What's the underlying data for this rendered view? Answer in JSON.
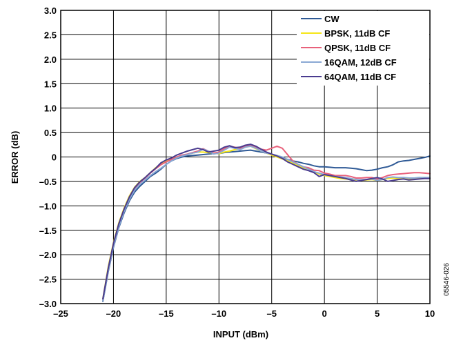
{
  "figure_id": "05546-026",
  "chart_data": {
    "type": "line",
    "xlabel": "INPUT (dBm)",
    "ylabel": "ERROR (dB)",
    "xlim": [
      -25,
      10
    ],
    "ylim": [
      -3.0,
      3.0
    ],
    "x_ticks": [
      -25,
      -20,
      -15,
      -10,
      -5,
      0,
      5,
      10
    ],
    "x_tick_labels": [
      "–25",
      "–20",
      "–15",
      "–10",
      "–5",
      "0",
      "5",
      "10"
    ],
    "y_ticks": [
      3.0,
      2.5,
      2.0,
      1.5,
      1.0,
      0.5,
      0,
      -0.5,
      -1.0,
      -1.5,
      -2.0,
      -2.5,
      -3.0
    ],
    "y_tick_labels": [
      "3.0",
      "2.5",
      "2.0",
      "1.5",
      "1.0",
      "0.5",
      "0",
      "–0.5",
      "–1.0",
      "–1.5",
      "–2.0",
      "–2.5",
      "–3.0"
    ],
    "grid": true,
    "legend_position": "top-right",
    "series": [
      {
        "name": "CW",
        "color": "#2f5a96",
        "x": [
          -21.0,
          -20.5,
          -20.0,
          -19.5,
          -19.0,
          -18.5,
          -18.0,
          -17.5,
          -17.0,
          -16.5,
          -16.0,
          -15.5,
          -15.0,
          -14.5,
          -14.0,
          -13.5,
          -13.0,
          -12.5,
          -12.0,
          -11.5,
          -11.0,
          -10.5,
          -10.0,
          -9.5,
          -9.0,
          -8.5,
          -8.0,
          -7.5,
          -7.0,
          -6.5,
          -6.0,
          -5.5,
          -5.0,
          -4.5,
          -4.0,
          -3.5,
          -3.0,
          -2.5,
          -2.0,
          -1.5,
          -1.0,
          -0.5,
          0.0,
          0.5,
          1.0,
          1.5,
          2.0,
          2.5,
          3.0,
          3.5,
          4.0,
          4.5,
          5.0,
          5.5,
          6.0,
          6.5,
          7.0,
          7.5,
          8.0,
          8.5,
          9.0,
          9.5,
          10.0
        ],
        "values": [
          -2.95,
          -2.35,
          -1.85,
          -1.45,
          -1.15,
          -0.9,
          -0.72,
          -0.6,
          -0.5,
          -0.4,
          -0.33,
          -0.25,
          -0.15,
          -0.08,
          -0.03,
          0.0,
          0.02,
          0.03,
          0.04,
          0.05,
          0.06,
          0.07,
          0.07,
          0.09,
          0.1,
          0.11,
          0.12,
          0.13,
          0.14,
          0.12,
          0.1,
          0.08,
          0.05,
          0.02,
          -0.02,
          -0.05,
          -0.08,
          -0.1,
          -0.13,
          -0.15,
          -0.18,
          -0.2,
          -0.2,
          -0.21,
          -0.22,
          -0.22,
          -0.22,
          -0.23,
          -0.24,
          -0.26,
          -0.28,
          -0.27,
          -0.25,
          -0.22,
          -0.2,
          -0.16,
          -0.1,
          -0.08,
          -0.07,
          -0.05,
          -0.03,
          -0.01,
          0.02
        ]
      },
      {
        "name": "BPSK, 11dB CF",
        "color": "#f5e617",
        "x": [
          -21.0,
          -20.5,
          -20.0,
          -19.5,
          -19.0,
          -18.5,
          -18.0,
          -17.5,
          -17.0,
          -16.5,
          -16.0,
          -15.5,
          -15.0,
          -14.5,
          -14.0,
          -13.5,
          -13.0,
          -12.5,
          -12.0,
          -11.5,
          -11.0,
          -10.5,
          -10.0,
          -9.5,
          -9.0,
          -8.5,
          -8.0,
          -7.5,
          -7.0,
          -6.5,
          -6.0,
          -5.5,
          -5.0,
          -4.5,
          -4.0,
          -3.5,
          -3.0,
          -2.5,
          -2.0,
          -1.5,
          -1.0,
          -0.5,
          0.0,
          0.5,
          1.0,
          1.5,
          2.0,
          2.5,
          3.0,
          3.5,
          4.0,
          4.5,
          5.0,
          5.5,
          6.0,
          6.5,
          7.0,
          7.5,
          8.0,
          8.5,
          9.0,
          9.5,
          10.0
        ],
        "values": [
          -2.9,
          -2.25,
          -1.75,
          -1.35,
          -1.05,
          -0.8,
          -0.62,
          -0.5,
          -0.42,
          -0.32,
          -0.22,
          -0.14,
          -0.08,
          -0.04,
          0.0,
          0.03,
          0.05,
          0.08,
          0.1,
          0.1,
          0.09,
          0.08,
          0.07,
          0.1,
          0.12,
          0.15,
          0.17,
          0.2,
          0.22,
          0.17,
          0.12,
          0.08,
          0.04,
          0.0,
          -0.04,
          -0.08,
          -0.13,
          -0.18,
          -0.22,
          -0.25,
          -0.3,
          -0.35,
          -0.38,
          -0.4,
          -0.42,
          -0.44,
          -0.45,
          -0.46,
          -0.47,
          -0.48,
          -0.47,
          -0.46,
          -0.48,
          -0.46,
          -0.44,
          -0.43,
          -0.44,
          -0.43,
          -0.45,
          -0.44,
          -0.44,
          -0.43,
          -0.43
        ]
      },
      {
        "name": "QPSK, 11dB CF",
        "color": "#e8617b",
        "x": [
          -21.0,
          -20.5,
          -20.0,
          -19.5,
          -19.0,
          -18.5,
          -18.0,
          -17.5,
          -17.0,
          -16.5,
          -16.0,
          -15.5,
          -15.0,
          -14.5,
          -14.0,
          -13.5,
          -13.0,
          -12.5,
          -12.0,
          -11.5,
          -11.0,
          -10.5,
          -10.0,
          -9.5,
          -9.0,
          -8.5,
          -8.0,
          -7.5,
          -7.0,
          -6.5,
          -6.0,
          -5.5,
          -5.0,
          -4.5,
          -4.0,
          -3.5,
          -3.0,
          -2.5,
          -2.0,
          -1.5,
          -1.0,
          -0.5,
          0.0,
          0.5,
          1.0,
          1.5,
          2.0,
          2.5,
          3.0,
          3.5,
          4.0,
          4.5,
          5.0,
          5.5,
          6.0,
          6.5,
          7.0,
          7.5,
          8.0,
          8.5,
          9.0,
          9.5,
          10.0
        ],
        "values": [
          -2.92,
          -2.3,
          -1.78,
          -1.38,
          -1.08,
          -0.83,
          -0.64,
          -0.52,
          -0.43,
          -0.33,
          -0.24,
          -0.16,
          -0.1,
          -0.05,
          0.0,
          0.04,
          0.06,
          0.09,
          0.12,
          0.17,
          0.12,
          0.08,
          0.1,
          0.17,
          0.22,
          0.2,
          0.18,
          0.22,
          0.24,
          0.2,
          0.16,
          0.14,
          0.18,
          0.22,
          0.18,
          0.05,
          -0.08,
          -0.15,
          -0.2,
          -0.22,
          -0.27,
          -0.28,
          -0.33,
          -0.35,
          -0.38,
          -0.38,
          -0.38,
          -0.4,
          -0.43,
          -0.43,
          -0.42,
          -0.42,
          -0.45,
          -0.42,
          -0.38,
          -0.36,
          -0.35,
          -0.34,
          -0.33,
          -0.32,
          -0.32,
          -0.33,
          -0.34
        ]
      },
      {
        "name": "16QAM, 12dB CF",
        "color": "#8aa8d4",
        "x": [
          -21.0,
          -20.5,
          -20.0,
          -19.5,
          -19.0,
          -18.5,
          -18.0,
          -17.5,
          -17.0,
          -16.5,
          -16.0,
          -15.5,
          -15.0,
          -14.5,
          -14.0,
          -13.5,
          -13.0,
          -12.5,
          -12.0,
          -11.5,
          -11.0,
          -10.5,
          -10.0,
          -9.5,
          -9.0,
          -8.5,
          -8.0,
          -7.5,
          -7.0,
          -6.5,
          -6.0,
          -5.5,
          -5.0,
          -4.5,
          -4.0,
          -3.5,
          -3.0,
          -2.5,
          -2.0,
          -1.5,
          -1.0,
          -0.5,
          0.0,
          0.5,
          1.0,
          1.5,
          2.0,
          2.5,
          3.0,
          3.5,
          4.0,
          4.5,
          5.0,
          5.5,
          6.0,
          6.5,
          7.0,
          7.5,
          8.0,
          8.5,
          9.0,
          9.5,
          10.0
        ],
        "values": [
          -2.93,
          -2.33,
          -1.83,
          -1.43,
          -1.12,
          -0.87,
          -0.68,
          -0.56,
          -0.47,
          -0.38,
          -0.3,
          -0.23,
          -0.15,
          -0.08,
          -0.02,
          0.02,
          0.05,
          0.08,
          0.1,
          0.16,
          0.12,
          0.06,
          0.08,
          0.14,
          0.2,
          0.18,
          0.15,
          0.2,
          0.22,
          0.18,
          0.12,
          0.08,
          0.06,
          0.03,
          0.0,
          -0.05,
          -0.1,
          -0.15,
          -0.2,
          -0.25,
          -0.3,
          -0.33,
          -0.36,
          -0.38,
          -0.4,
          -0.41,
          -0.42,
          -0.44,
          -0.46,
          -0.47,
          -0.46,
          -0.45,
          -0.48,
          -0.46,
          -0.42,
          -0.41,
          -0.42,
          -0.42,
          -0.43,
          -0.43,
          -0.42,
          -0.42,
          -0.42
        ]
      },
      {
        "name": "64QAM, 11dB CF",
        "color": "#4a3b8f",
        "x": [
          -21.0,
          -20.5,
          -20.0,
          -19.5,
          -19.0,
          -18.5,
          -18.0,
          -17.5,
          -17.0,
          -16.5,
          -16.0,
          -15.5,
          -15.0,
          -14.5,
          -14.0,
          -13.5,
          -13.0,
          -12.5,
          -12.0,
          -11.5,
          -11.0,
          -10.5,
          -10.0,
          -9.5,
          -9.0,
          -8.5,
          -8.0,
          -7.5,
          -7.0,
          -6.5,
          -6.0,
          -5.5,
          -5.0,
          -4.5,
          -4.0,
          -3.5,
          -3.0,
          -2.5,
          -2.0,
          -1.5,
          -1.0,
          -0.5,
          0.0,
          0.5,
          1.0,
          1.5,
          2.0,
          2.5,
          3.0,
          3.5,
          4.0,
          4.5,
          5.0,
          5.5,
          6.0,
          6.5,
          7.0,
          7.5,
          8.0,
          8.5,
          9.0,
          9.5,
          10.0
        ],
        "values": [
          -2.9,
          -2.28,
          -1.77,
          -1.37,
          -1.07,
          -0.82,
          -0.63,
          -0.51,
          -0.42,
          -0.32,
          -0.23,
          -0.12,
          -0.06,
          -0.02,
          0.04,
          0.08,
          0.12,
          0.15,
          0.18,
          0.15,
          0.1,
          0.12,
          0.14,
          0.2,
          0.23,
          0.19,
          0.2,
          0.24,
          0.26,
          0.22,
          0.16,
          0.1,
          0.06,
          0.02,
          -0.03,
          -0.1,
          -0.15,
          -0.2,
          -0.25,
          -0.28,
          -0.32,
          -0.4,
          -0.36,
          -0.38,
          -0.4,
          -0.42,
          -0.44,
          -0.47,
          -0.5,
          -0.48,
          -0.46,
          -0.44,
          -0.42,
          -0.45,
          -0.5,
          -0.48,
          -0.46,
          -0.45,
          -0.47,
          -0.46,
          -0.45,
          -0.44,
          -0.44
        ]
      }
    ]
  }
}
